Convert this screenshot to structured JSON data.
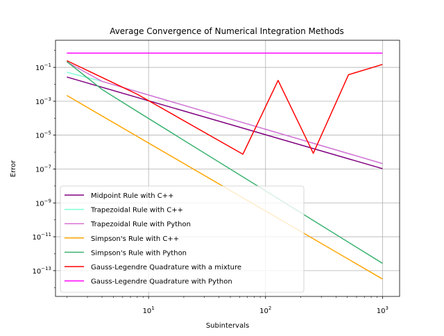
{
  "chart_data": {
    "type": "line",
    "title": "Average Convergence of Numerical Integration Methods",
    "xlabel": "Subintervals",
    "ylabel": "Error",
    "xscale": "log",
    "yscale": "log",
    "xlim": [
      1.6,
      1400
    ],
    "ylim": [
      3e-15,
      4
    ],
    "x_ticks": [
      {
        "base": "10",
        "exp": "1",
        "value": 10
      },
      {
        "base": "10",
        "exp": "2",
        "value": 100
      },
      {
        "base": "10",
        "exp": "3",
        "value": 1000
      }
    ],
    "y_ticks": [
      {
        "base": "10",
        "exp": "−13",
        "value": 1e-13
      },
      {
        "base": "10",
        "exp": "−11",
        "value": 1e-11
      },
      {
        "base": "10",
        "exp": "−9",
        "value": 1e-09
      },
      {
        "base": "10",
        "exp": "−7",
        "value": 1e-07
      },
      {
        "base": "10",
        "exp": "−5",
        "value": 1e-05
      },
      {
        "base": "10",
        "exp": "−3",
        "value": 0.001
      },
      {
        "base": "10",
        "exp": "−1",
        "value": 0.1
      }
    ],
    "grid": true,
    "legend_position": "lower-left",
    "series": [
      {
        "name": "Midpoint Rule with C++",
        "color": "#800080",
        "x": [
          2,
          1000
        ],
        "y": [
          0.027,
          1.05e-07
        ]
      },
      {
        "name": "Trapezoidal Rule with C++",
        "color": "#7fffd4",
        "x": [
          2,
          4,
          1000
        ],
        "y": [
          0.052,
          0.015,
          2.1e-07
        ]
      },
      {
        "name": "Trapezoidal Rule with Python",
        "color": "#da70d6",
        "x": [
          2,
          4,
          1000
        ],
        "y": [
          0.21,
          0.015,
          2.1e-07
        ]
      },
      {
        "name": "Simpson's Rule with C++",
        "color": "#ffa500",
        "x": [
          2,
          1000
        ],
        "y": [
          0.0022,
          3.2e-14
        ]
      },
      {
        "name": "Simpson's Rule with Python",
        "color": "#3cb371",
        "x": [
          2,
          4,
          8,
          1000
        ],
        "y": [
          0.22,
          0.005,
          0.00025,
          2.7e-13
        ]
      },
      {
        "name": "Gauss-Legendre Quadrature with a mixture",
        "color": "#ff0000",
        "x": [
          2,
          8,
          64,
          128,
          256,
          512,
          1000
        ],
        "y": [
          0.25,
          0.0026,
          7.5e-07,
          0.017,
          8.5e-07,
          0.037,
          0.15
        ]
      },
      {
        "name": "Gauss-Legendre Quadrature with Python",
        "color": "#ff00ff",
        "x": [
          2,
          1000
        ],
        "y": [
          0.7,
          0.7
        ]
      }
    ]
  }
}
